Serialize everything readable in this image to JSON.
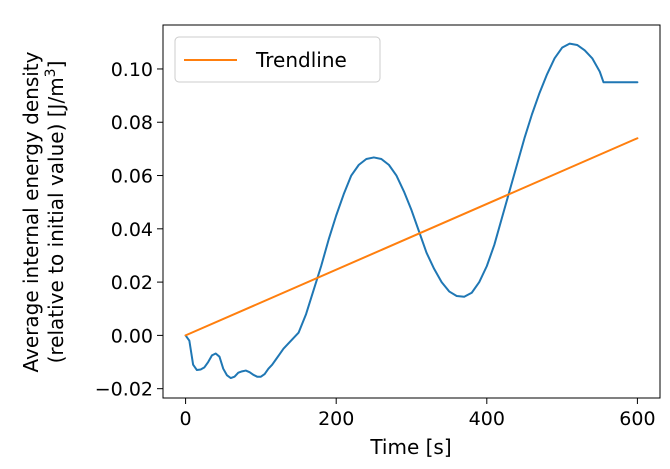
{
  "chart_data": {
    "type": "line",
    "xlabel": "Time [s]",
    "ylabel_line1": "Average internal energy density",
    "ylabel_line2_prefix": "(relative to initial value) [J/m",
    "ylabel_sup": "3",
    "ylabel_line2_suffix": "]",
    "xlim": [
      -30,
      630
    ],
    "ylim": [
      -0.0235,
      0.1165
    ],
    "xticks": [
      0,
      200,
      400,
      600
    ],
    "xtick_labels": [
      "0",
      "200",
      "400",
      "600"
    ],
    "yticks": [
      -0.02,
      0.0,
      0.02,
      0.04,
      0.06,
      0.08,
      0.1
    ],
    "ytick_labels": [
      "−0.02",
      "0.00",
      "0.02",
      "0.04",
      "0.06",
      "0.08",
      "0.10"
    ],
    "grid": false,
    "legend_position": "top-left",
    "series": [
      {
        "color": "#1f77b4",
        "x": [
          0,
          5,
          10,
          15,
          20,
          25,
          30,
          35,
          40,
          45,
          50,
          55,
          60,
          65,
          70,
          75,
          80,
          85,
          90,
          95,
          100,
          105,
          110,
          115,
          120,
          125,
          130,
          135,
          140,
          150,
          160,
          170,
          180,
          190,
          200,
          210,
          220,
          230,
          240,
          250,
          260,
          270,
          280,
          290,
          300,
          310,
          320,
          330,
          340,
          350,
          360,
          370,
          380,
          390,
          400,
          410,
          420,
          430,
          440,
          450,
          460,
          470,
          480,
          490,
          500,
          510,
          520,
          530,
          540,
          550,
          555,
          560,
          570,
          580,
          590,
          600
        ],
        "y": [
          0.0,
          -0.002,
          -0.011,
          -0.013,
          -0.0128,
          -0.012,
          -0.01,
          -0.0075,
          -0.0068,
          -0.008,
          -0.0125,
          -0.015,
          -0.016,
          -0.0155,
          -0.014,
          -0.0135,
          -0.0132,
          -0.0138,
          -0.0148,
          -0.0155,
          -0.0155,
          -0.0145,
          -0.0125,
          -0.011,
          -0.009,
          -0.007,
          -0.005,
          -0.0035,
          -0.002,
          0.001,
          0.008,
          0.017,
          0.026,
          0.036,
          0.045,
          0.053,
          0.06,
          0.064,
          0.0662,
          0.0668,
          0.0662,
          0.064,
          0.06,
          0.054,
          0.047,
          0.039,
          0.031,
          0.025,
          0.02,
          0.0165,
          0.0148,
          0.0145,
          0.016,
          0.02,
          0.026,
          0.034,
          0.044,
          0.054,
          0.064,
          0.074,
          0.083,
          0.091,
          0.098,
          0.104,
          0.108,
          0.1095,
          0.109,
          0.107,
          0.104,
          0.099,
          0.095,
          0.095,
          0.095,
          0.095,
          0.095,
          0.095
        ]
      },
      {
        "name": "Trendline",
        "color": "#ff7f0e",
        "x": [
          0,
          600
        ],
        "y": [
          0.0,
          0.074
        ]
      }
    ]
  }
}
